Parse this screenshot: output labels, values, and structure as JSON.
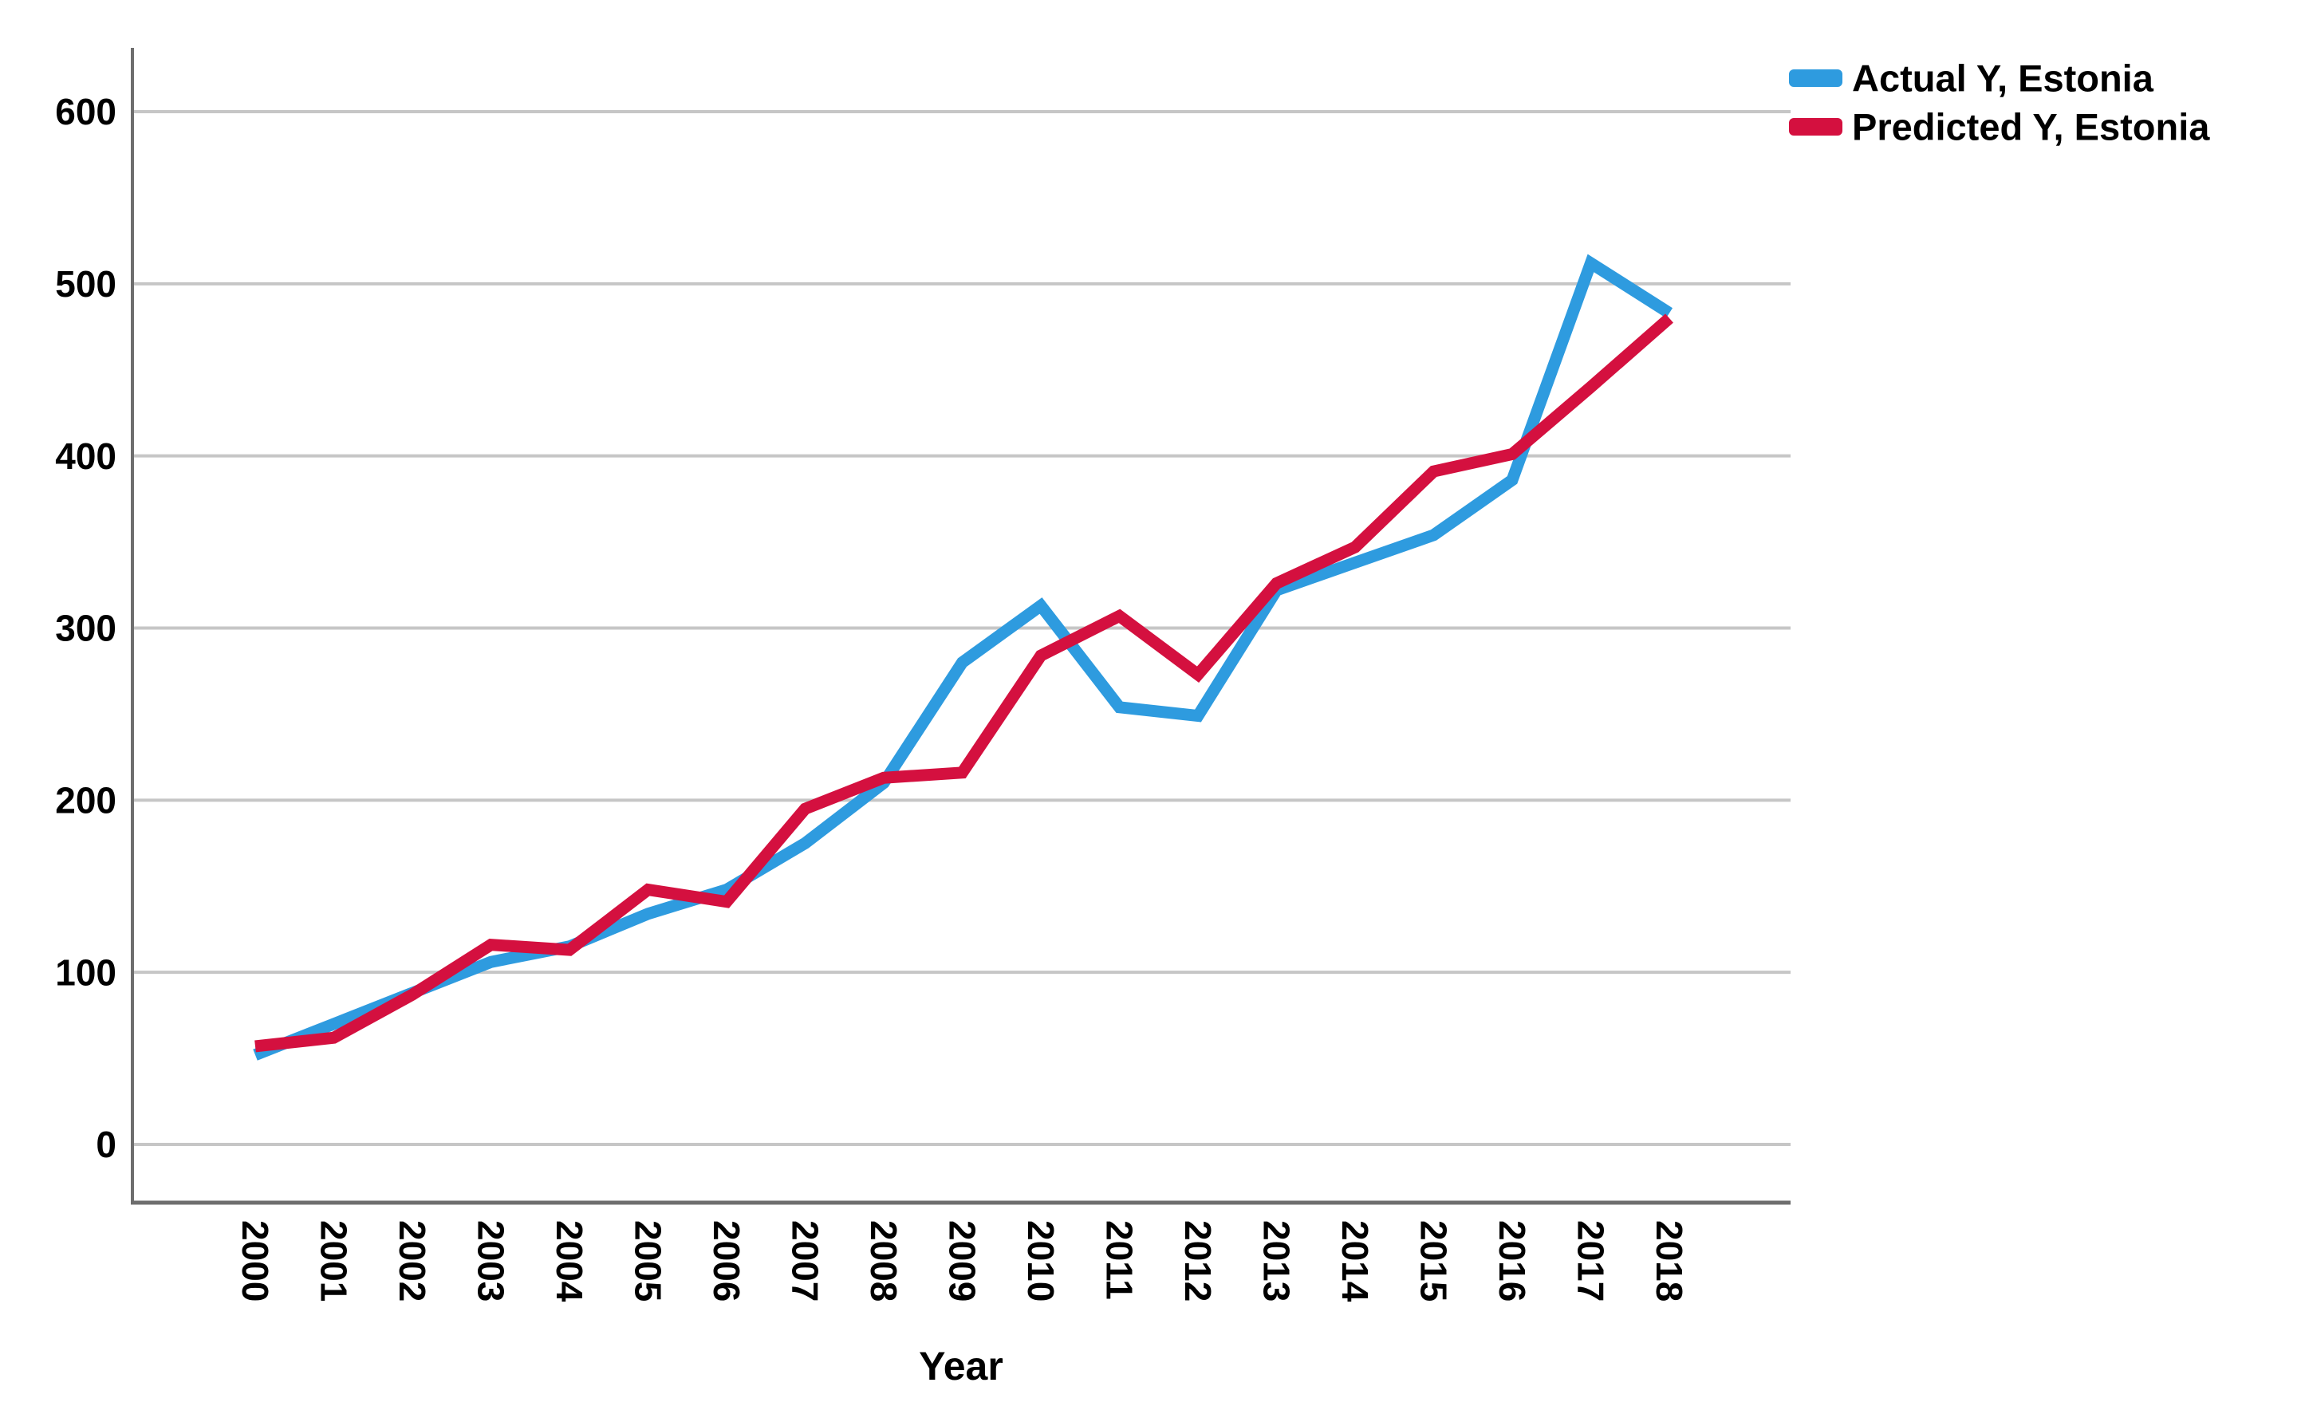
{
  "chart_data": {
    "type": "line",
    "title": "",
    "xlabel": "Year",
    "ylabel": "",
    "x_categories": [
      "2000",
      "2001",
      "2002",
      "2003",
      "2004",
      "2005",
      "2006",
      "2007",
      "2008",
      "2009",
      "2010",
      "2011",
      "2012",
      "2013",
      "2014",
      "2015",
      "2016",
      "2017",
      "2018"
    ],
    "yticks": [
      "0",
      "100",
      "200",
      "300",
      "400",
      "500",
      "600"
    ],
    "ytick_values": [
      0,
      100,
      200,
      300,
      400,
      500,
      600
    ],
    "ylim": [
      0,
      620
    ],
    "grid": true,
    "legend_position": "top-right",
    "series": [
      {
        "name": "Actual Y, Estonia",
        "color": "#2E9BDF",
        "values": [
          52,
          70,
          88,
          106,
          115,
          134,
          148,
          175,
          210,
          280,
          313,
          254,
          249,
          322,
          338,
          354,
          386,
          512,
          483
        ]
      },
      {
        "name": "Predicted Y, Estonia",
        "color": "#D4103F",
        "values": [
          57,
          62,
          87,
          116,
          113,
          148,
          141,
          195,
          213,
          216,
          284,
          307,
          273,
          326,
          347,
          391,
          401,
          440,
          480
        ]
      }
    ],
    "style": {
      "gridline_color": "#c6c6c6",
      "axis_color": "#6e6e6e",
      "line_width": 15
    }
  }
}
